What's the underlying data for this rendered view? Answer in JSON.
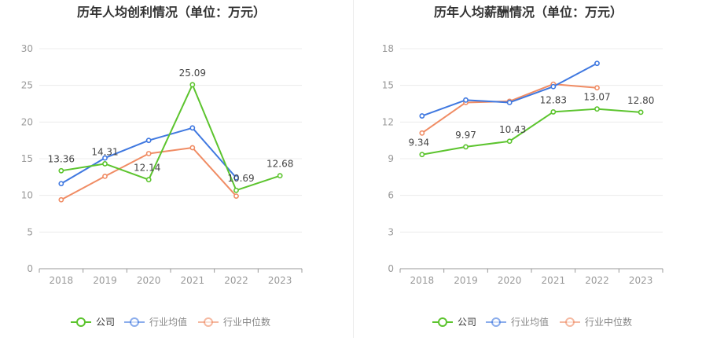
{
  "colors": {
    "company": "#5cc42e",
    "industry_avg": "#3f78e0",
    "industry_median": "#f08c64"
  },
  "chart_data": [
    {
      "type": "line",
      "title": "历年人均创利情况（单位：万元）",
      "categories": [
        "2018",
        "2019",
        "2020",
        "2021",
        "2022",
        "2023"
      ],
      "ylim": [
        0,
        30
      ],
      "yticks": [
        0,
        5,
        10,
        15,
        20,
        25,
        30
      ],
      "grid": true,
      "legend": "bottom",
      "series": [
        {
          "name": "公司",
          "color": "#5cc42e",
          "labels": true,
          "values": [
            13.36,
            14.31,
            12.14,
            25.09,
            10.69,
            12.68
          ],
          "value_labels": [
            "13.36",
            "14.31",
            "12.14",
            "25.09",
            "10.69",
            "12.68"
          ]
        },
        {
          "name": "行业均值",
          "color": "#3f78e0",
          "labels": false,
          "values": [
            11.6,
            15.1,
            17.5,
            19.2,
            12.4,
            null
          ]
        },
        {
          "name": "行业中位数",
          "color": "#f08c64",
          "labels": false,
          "values": [
            9.4,
            12.6,
            15.7,
            16.5,
            9.9,
            null
          ]
        }
      ]
    },
    {
      "type": "line",
      "title": "历年人均薪酬情况（单位：万元）",
      "categories": [
        "2018",
        "2019",
        "2020",
        "2021",
        "2022",
        "2023"
      ],
      "ylim": [
        0,
        18
      ],
      "yticks": [
        0,
        3,
        6,
        9,
        12,
        15,
        18
      ],
      "grid": true,
      "legend": "bottom",
      "series": [
        {
          "name": "公司",
          "color": "#5cc42e",
          "labels": true,
          "values": [
            9.34,
            9.97,
            10.43,
            12.83,
            13.07,
            12.8
          ],
          "value_labels": [
            "9.34",
            "9.97",
            "10.43",
            "12.83",
            "13.07",
            "12.80"
          ]
        },
        {
          "name": "行业均值",
          "color": "#3f78e0",
          "labels": false,
          "values": [
            12.5,
            13.8,
            13.6,
            14.9,
            16.8,
            null
          ]
        },
        {
          "name": "行业中位数",
          "color": "#f08c64",
          "labels": false,
          "values": [
            11.1,
            13.6,
            13.7,
            15.1,
            14.8,
            null
          ]
        }
      ]
    }
  ]
}
